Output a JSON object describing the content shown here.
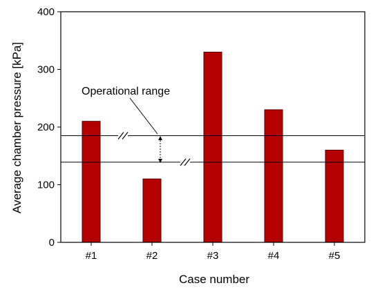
{
  "chart_data": {
    "type": "bar",
    "categories": [
      "#1",
      "#2",
      "#3",
      "#4",
      "#5"
    ],
    "values": [
      210,
      110,
      330,
      230,
      160
    ],
    "title": "",
    "xlabel": "Case number",
    "ylabel": "Average chamber pressure [kPa]",
    "ylim": [
      0,
      400
    ],
    "yticks": [
      0,
      100,
      200,
      300,
      400
    ],
    "grid": false,
    "bar_color": "#b30000",
    "bar_edge_color": "#5a0000",
    "reference_lines": [
      185,
      139
    ],
    "annotation": {
      "text": "Operational range"
    }
  }
}
